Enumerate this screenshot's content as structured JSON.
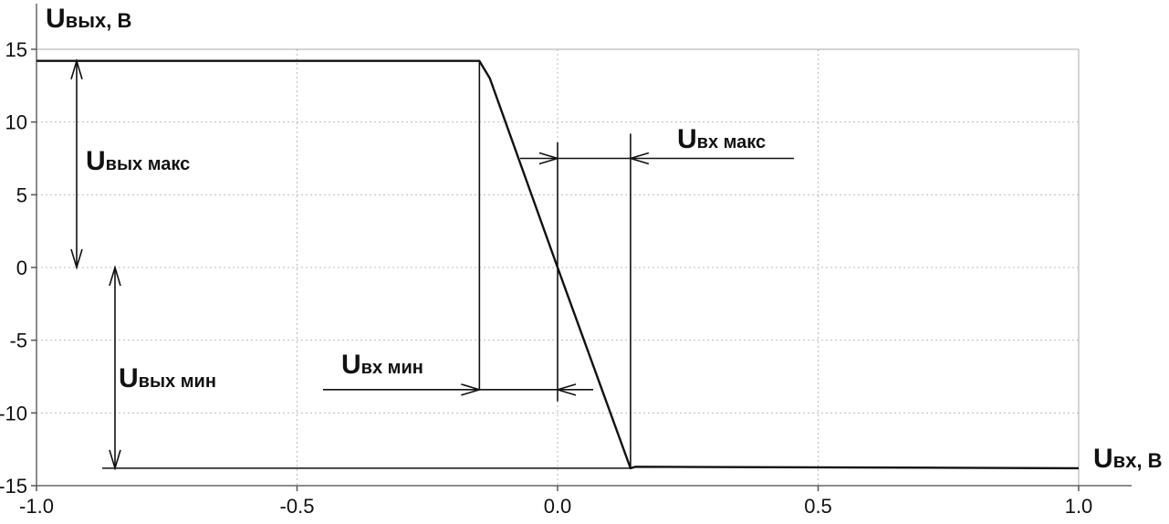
{
  "chart_data": {
    "type": "line",
    "xlim": [
      -1.0,
      1.0
    ],
    "ylim": [
      -15,
      15
    ],
    "x_ticks": [
      -1.0,
      -0.5,
      0.0,
      0.5,
      1.0
    ],
    "x_tick_labels": [
      "-1.0",
      "-0.5",
      "0.0",
      "0.5",
      "1.0"
    ],
    "y_ticks": [
      15,
      10,
      5,
      0,
      -5,
      -10,
      -15
    ],
    "y_tick_labels": [
      "15",
      "10",
      "5",
      "0",
      "-5",
      "-10",
      "-15"
    ],
    "grid": true,
    "ylabel": {
      "main": "U",
      "sub": "вых",
      "unit": ", В"
    },
    "xlabel": {
      "main": "U",
      "sub": "вх",
      "unit": ", В"
    },
    "series": [
      {
        "x": [
          -1.0,
          -0.15,
          -0.13,
          0.0,
          0.14,
          0.15,
          1.0
        ],
        "y": [
          14.2,
          14.2,
          13,
          0,
          -13.8,
          -13.7,
          -13.8
        ]
      }
    ],
    "annotations": {
      "uvyh_maks": {
        "main": "U",
        "sub": "вых макс"
      },
      "uvyh_min": {
        "main": "U",
        "sub": "вых мин"
      },
      "uvh_maks": {
        "main": "U",
        "sub": "вх макс"
      },
      "uvh_min": {
        "main": "U",
        "sub": "вх мин"
      }
    }
  }
}
